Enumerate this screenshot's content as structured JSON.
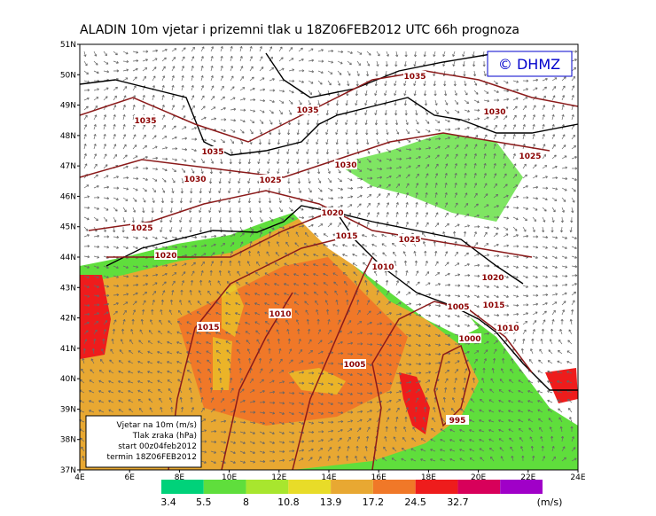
{
  "title": "ALADIN  10m  vjetar  i  prizemni  tlak  u  18Z06FEB2012  UTC  66h  prognoza",
  "logo": "© DHMZ",
  "lat_labels": [
    "51N",
    "50N",
    "49N",
    "48N",
    "47N",
    "46N",
    "45N",
    "44N",
    "43N",
    "42N",
    "41N",
    "40N",
    "39N",
    "38N",
    "37N"
  ],
  "lon_labels": [
    "4E",
    "6E",
    "8E",
    "10E",
    "12E",
    "14E",
    "16E",
    "18E",
    "20E",
    "22E",
    "24E"
  ],
  "info": [
    "Vjetar na 10m (m/s)",
    "Tlak zraka (hPa)",
    "start 00z04feb2012",
    "termin 18Z06FEB2012"
  ],
  "isobars": [
    "1035",
    "1030",
    "1035",
    "1035",
    "1035",
    "1030",
    "1025",
    "1030",
    "1025",
    "1020",
    "1015",
    "1025",
    "1025",
    "1020",
    "1010",
    "1020",
    "1005",
    "1015",
    "1010",
    "1015",
    "1010",
    "1000",
    "1005",
    "995"
  ],
  "legend": {
    "labels": [
      "3.4",
      "5.5",
      "8",
      "10.8",
      "13.9",
      "17.2",
      "24.5",
      "32.7"
    ],
    "unit": "(m/s)",
    "colors": [
      "#00d27a",
      "#5fde3c",
      "#a8e62e",
      "#e8dc28",
      "#e8a832",
      "#f07828",
      "#ee1c1c",
      "#d8005a",
      "#a000c8"
    ]
  }
}
